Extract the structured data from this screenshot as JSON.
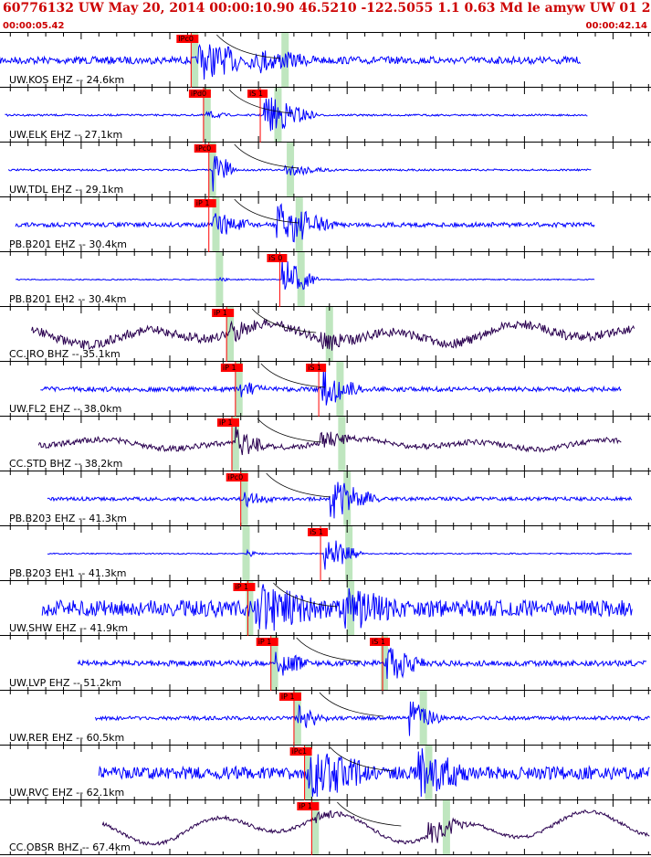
{
  "header": {
    "title": "60776132 UW May 20, 2014 00:00:10.90   46.5210 -122.5055  1.1 0.63 Md le amyw UW 01   2",
    "start_time": "00:00:05.42",
    "end_time": "00:00:42.14"
  },
  "colors": {
    "trace_blue": "#0000ff",
    "trace_purple": "#2a0050",
    "pick_red": "#ff0000",
    "window_green": "#bfe6bf"
  },
  "time_axis": {
    "start_s": 5.42,
    "end_s": 42.14
  },
  "traces": [
    {
      "label": "UW.KOS EHZ -- 24.6km",
      "color": "#0000ff",
      "start_s": 5.4,
      "end_s": 38.2,
      "amp": 4,
      "p_time": 16.2,
      "p_label": "IPc0",
      "s_time": null,
      "s_label": "",
      "burst": [
        16.6,
        20.5,
        19
      ],
      "burst2": [
        20.0,
        23.5,
        10
      ],
      "noise": 0,
      "green": [
        16.4,
        21.5
      ]
    },
    {
      "label": "UW.ELK EHZ -- 27.1km",
      "color": "#0000ff",
      "start_s": 5.7,
      "end_s": 38.6,
      "amp": 1,
      "p_time": 16.9,
      "p_label": "iPd0",
      "s_time": 20.1,
      "s_label": "iS 1",
      "burst": [
        20.3,
        23.5,
        22
      ],
      "burst2": [
        17.0,
        18.5,
        4
      ],
      "noise": 0,
      "green": [
        17.1,
        21.1
      ]
    },
    {
      "label": "UW.TDL EHZ -- 29.1km",
      "color": "#0000ff",
      "start_s": 5.9,
      "end_s": 38.8,
      "amp": 1,
      "p_time": 17.2,
      "p_label": "iPc0",
      "s_time": null,
      "s_label": "",
      "burst": [
        17.4,
        18.8,
        24
      ],
      "burst2": [
        21.5,
        24.5,
        6
      ],
      "noise": 0,
      "green": [
        17.4,
        21.8
      ]
    },
    {
      "label": "PB.B201 EHZ -- 30.4km",
      "color": "#0000ff",
      "start_s": 6.3,
      "end_s": 39.0,
      "amp": 2.5,
      "p_time": 17.2,
      "p_label": "iP 1",
      "s_time": null,
      "s_label": "",
      "burst": [
        21.0,
        24.5,
        24
      ],
      "burst2": [
        17.4,
        20.0,
        12
      ],
      "noise": 0,
      "green": [
        17.6,
        22.3
      ]
    },
    {
      "label": "PB.B201 EH2 -- 30.4km",
      "color": "#0000ff",
      "start_s": 6.3,
      "end_s": 39.0,
      "amp": 0.6,
      "p_time": null,
      "p_label": "",
      "s_time": 21.2,
      "s_label": "iS 0",
      "burst": [
        21.3,
        23.5,
        24
      ],
      "burst2": [
        17.8,
        18.5,
        2
      ],
      "noise": 0,
      "green": [
        17.8,
        22.4
      ]
    },
    {
      "label": "CC.JRO BHZ -- 35.1km",
      "color": "#2a0050",
      "start_s": 7.2,
      "end_s": 41.2,
      "amp": 5,
      "p_time": 18.2,
      "p_label": "iP 1",
      "s_time": null,
      "s_label": "",
      "burst": [
        18.4,
        20.0,
        8
      ],
      "burst2": [
        23.5,
        25.5,
        8
      ],
      "noise": 12,
      "green": [
        18.4,
        24.0
      ]
    },
    {
      "label": "UW.FL2 EHZ -- 38.0km",
      "color": "#0000ff",
      "start_s": 7.7,
      "end_s": 40.5,
      "amp": 2.5,
      "p_time": 18.7,
      "p_label": "iP 1",
      "s_time": 23.4,
      "s_label": "iS 1",
      "burst": [
        23.6,
        26.0,
        20
      ],
      "burst2": [
        18.9,
        20.5,
        8
      ],
      "noise": 0,
      "green": [
        18.9,
        24.6
      ]
    },
    {
      "label": "CC.STD BHZ -- 38.2km",
      "color": "#2a0050",
      "start_s": 7.6,
      "end_s": 40.5,
      "amp": 3,
      "p_time": 18.5,
      "p_label": "iP 1",
      "s_time": null,
      "s_label": "",
      "burst": [
        18.7,
        20.5,
        16
      ],
      "burst2": [
        23.5,
        25.5,
        10
      ],
      "noise": 6,
      "green": [
        18.7,
        24.7
      ]
    },
    {
      "label": "PB.B203 EHZ -- 41.3km",
      "color": "#0000ff",
      "start_s": 8.1,
      "end_s": 41.1,
      "amp": 2,
      "p_time": 19.0,
      "p_label": "iPc0",
      "s_time": null,
      "s_label": "",
      "burst": [
        24.0,
        27.0,
        22
      ],
      "burst2": [
        19.2,
        21.0,
        8
      ],
      "noise": 0,
      "green": [
        19.2,
        25.0
      ]
    },
    {
      "label": "PB.B203 EH1 -- 41.3km",
      "color": "#0000ff",
      "start_s": 8.1,
      "end_s": 41.1,
      "amp": 0.7,
      "p_time": null,
      "p_label": "",
      "s_time": 23.5,
      "s_label": "iS 1",
      "burst": [
        23.7,
        26.0,
        20
      ],
      "burst2": [
        19.3,
        20.5,
        3
      ],
      "noise": 0,
      "green": [
        19.3,
        25.1
      ]
    },
    {
      "label": "UW.SHW EHZ -- 41.9km",
      "color": "#0000ff",
      "start_s": 7.8,
      "end_s": 41.1,
      "amp": 9,
      "p_time": 19.4,
      "p_label": "iP 1",
      "s_time": null,
      "s_label": "",
      "burst": [
        19.6,
        24.0,
        22
      ],
      "burst2": [
        24.5,
        28.0,
        20
      ],
      "noise": 0,
      "green": [
        19.5,
        25.2
      ]
    },
    {
      "label": "UW.LVP EHZ -- 51.2km",
      "color": "#0000ff",
      "start_s": 9.8,
      "end_s": 41.9,
      "amp": 3,
      "p_time": 20.7,
      "p_label": "iP 1",
      "s_time": 27.0,
      "s_label": "iS 1",
      "burst": [
        27.2,
        29.5,
        20
      ],
      "burst2": [
        20.9,
        23.0,
        14
      ],
      "noise": 0,
      "green": [
        20.9,
        27.1
      ]
    },
    {
      "label": "UW.RER EHZ -- 60.5km",
      "color": "#0000ff",
      "start_s": 10.8,
      "end_s": 42.1,
      "amp": 2,
      "p_time": 22.0,
      "p_label": "iP 1",
      "s_time": null,
      "s_label": "",
      "burst": [
        22.2,
        24.0,
        14
      ],
      "burst2": [
        28.5,
        30.5,
        22
      ],
      "noise": 0,
      "green": [
        22.2,
        29.3
      ]
    },
    {
      "label": "UW.RVC EHZ -- 62.1km",
      "color": "#0000ff",
      "start_s": 11.0,
      "end_s": 42.1,
      "amp": 7,
      "p_time": 22.6,
      "p_label": "iPc1",
      "s_time": null,
      "s_label": "",
      "burst": [
        22.8,
        27.0,
        24
      ],
      "burst2": [
        29.0,
        32.0,
        24
      ],
      "noise": 0,
      "green": [
        22.8,
        29.6
      ]
    },
    {
      "label": "CC.OBSR BHZ -- 67.4km",
      "color": "#2a0050",
      "start_s": 11.2,
      "end_s": 42.1,
      "amp": 2,
      "p_time": 23.0,
      "p_label": "iP 1",
      "s_time": null,
      "s_label": "",
      "burst": [
        29.5,
        32.0,
        14
      ],
      "burst2": [
        23.2,
        25.0,
        4
      ],
      "noise": 18,
      "green": [
        23.2,
        30.6
      ]
    }
  ]
}
